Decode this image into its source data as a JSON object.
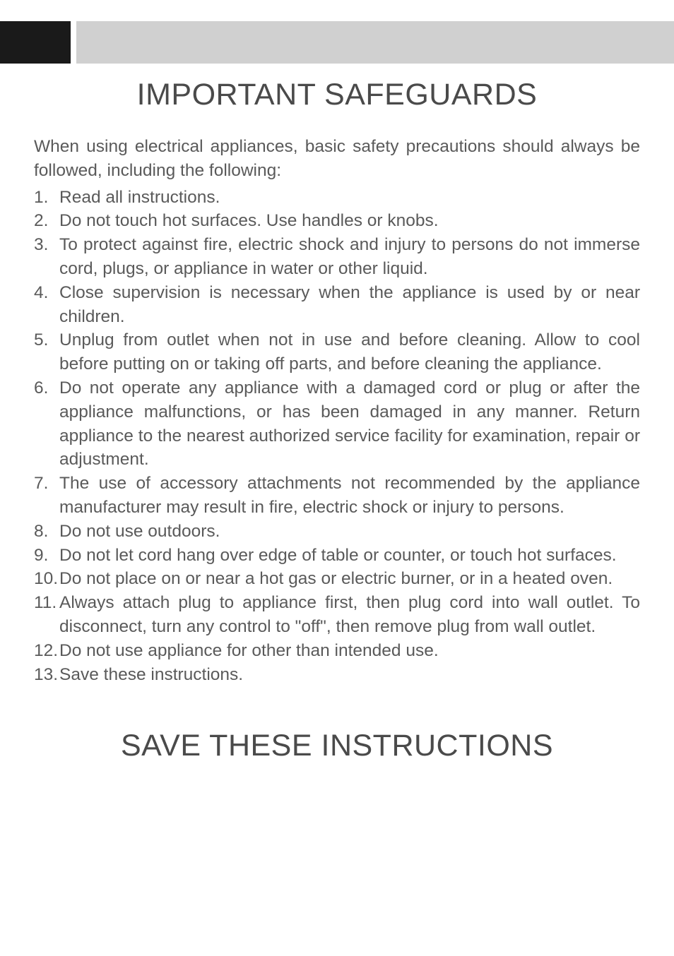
{
  "title_main": "IMPORTANT SAFEGUARDS",
  "intro": "When using electrical appliances, basic safety precautions should always be followed, including the following:",
  "items": [
    {
      "num": "1.",
      "text": "Read all instructions."
    },
    {
      "num": "2.",
      "text": "Do not touch hot surfaces. Use handles or knobs."
    },
    {
      "num": "3.",
      "text": "To protect against fire, electric shock and injury to persons do not immerse cord, plugs, or appliance in water or other liquid."
    },
    {
      "num": "4.",
      "text": "Close supervision is necessary when the appliance is used by or near children."
    },
    {
      "num": "5.",
      "text": "Unplug from outlet when not in use and before cleaning. Allow to cool before putting on or taking off parts, and before cleaning the appliance."
    },
    {
      "num": "6.",
      "text": "Do not operate any appliance with a damaged cord or plug or after the appliance malfunctions, or has been damaged in any manner. Return appliance to the nearest authorized service facility for examination, repair or adjustment."
    },
    {
      "num": "7.",
      "text": "The use of accessory attachments not recommended by the appliance manufacturer may result in fire, electric shock or injury to persons."
    },
    {
      "num": "8.",
      "text": "Do not use outdoors."
    },
    {
      "num": "9.",
      "text": "Do not let cord hang over edge of table or counter, or touch hot surfaces."
    },
    {
      "num": "10.",
      "text": "Do not place on or near a hot gas or electric burner, or in a heated oven."
    },
    {
      "num": "11.",
      "text": "Always attach plug to appliance first, then plug cord into wall outlet. To disconnect, turn any control to \"off\", then remove plug from wall outlet."
    },
    {
      "num": "12.",
      "text": "Do not use appliance for other than intended use."
    },
    {
      "num": "13.",
      "text": "Save these instructions."
    }
  ],
  "title_footer": "SAVE THESE INSTRUCTIONS",
  "colors": {
    "black_box": "#1a1a1a",
    "grey_bar": "#d0d0d0",
    "text": "#5a5a5a",
    "heading": "#4a4a4a",
    "background": "#ffffff"
  },
  "typography": {
    "heading_fontsize": 43,
    "body_fontsize": 24.5,
    "line_height": 1.38
  }
}
